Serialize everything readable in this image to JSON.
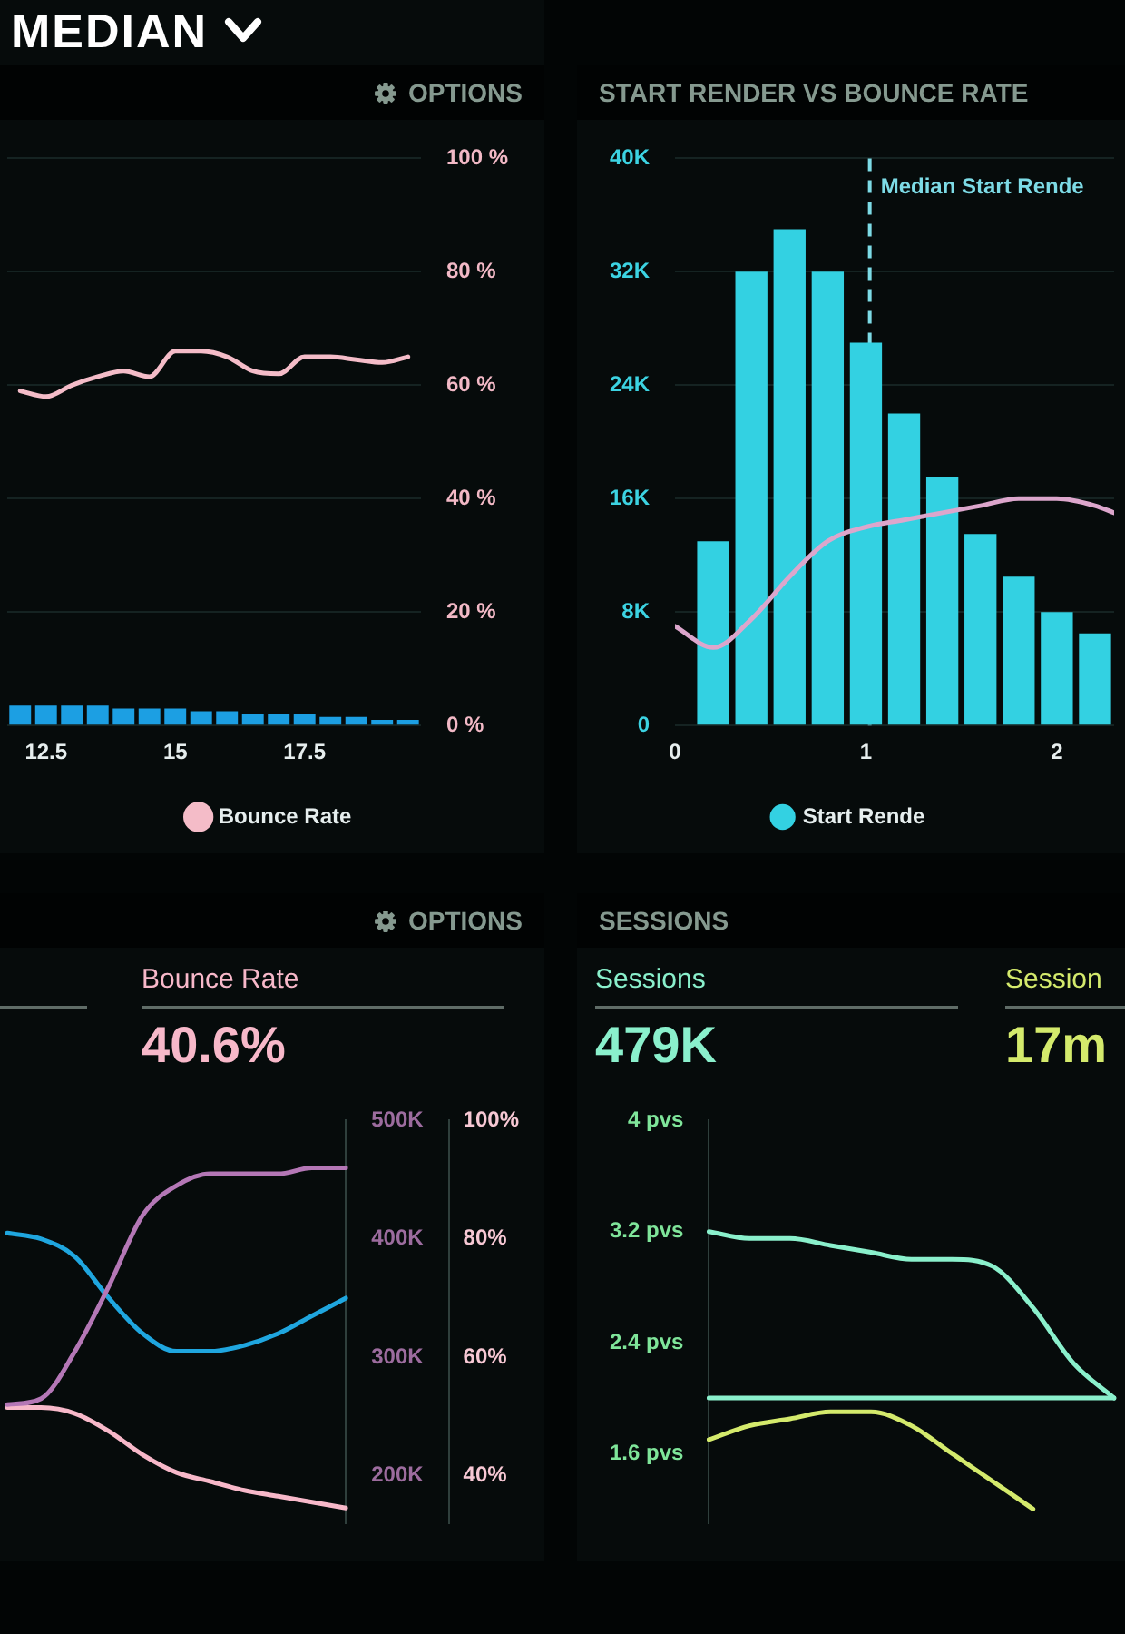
{
  "chart_data": [
    {
      "type": "bar",
      "x": [
        12,
        12.5,
        13,
        13.5,
        14,
        14.5,
        15,
        15.5,
        16,
        16.5,
        17,
        17.5,
        18,
        18.5,
        19,
        19.5
      ],
      "series": [
        {
          "color": "#1c9fe3",
          "values": [
            3.5,
            3.5,
            3.5,
            3.5,
            3,
            3,
            3,
            2.5,
            2.5,
            2,
            2,
            2,
            1.5,
            1.5,
            1,
            1
          ]
        },
        {
          "name": "Bounce Rate",
          "type": "line",
          "color": "#f4bcc8",
          "values": [
            59,
            58,
            60,
            61.5,
            62.5,
            61.5,
            66,
            66,
            65,
            62.5,
            62,
            65,
            65,
            64.5,
            64,
            65
          ]
        }
      ],
      "xlim": [
        11.75,
        19.75
      ],
      "xticks": [
        12.5,
        15,
        17.5
      ],
      "ylim": [
        0,
        100
      ],
      "yticks": [
        {
          "value": 0,
          "label": "0 %"
        },
        {
          "value": 20,
          "label": "20 %"
        },
        {
          "value": 40,
          "label": "40 %"
        },
        {
          "value": 60,
          "label": "60 %"
        },
        {
          "value": 80,
          "label": "80 %"
        },
        {
          "value": 100,
          "label": "100 %"
        }
      ],
      "grid": "y",
      "legend": "bottom",
      "marker": "none",
      "annotations": [
        "MEDIAN",
        "OPTIONS"
      ]
    },
    {
      "type": "bar",
      "title": "START RENDER VS BOUNCE RATE",
      "x": [
        0.2,
        0.4,
        0.6,
        0.8,
        1,
        1.2,
        1.4,
        1.6,
        1.8,
        2,
        2.2
      ],
      "series": [
        {
          "name": "Start Rende",
          "color": "#33d1e2",
          "values": [
            13000,
            32000,
            35000,
            32000,
            27000,
            22000,
            17500,
            13500,
            10500,
            8000,
            6500
          ]
        },
        {
          "type": "line",
          "color": "#dca6cc",
          "x": [
            0,
            0.2,
            0.4,
            0.6,
            0.8,
            1,
            1.2,
            1.4,
            1.6,
            1.8,
            2,
            2.2,
            2.3
          ],
          "values": [
            7000,
            5500,
            7500,
            10500,
            13000,
            14000,
            14500,
            15000,
            15500,
            16000,
            16000,
            15500,
            15000
          ]
        }
      ],
      "xlim": [
        0,
        2.3
      ],
      "xticks": [
        0,
        1,
        2
      ],
      "ylim": [
        0,
        40000
      ],
      "yticks": [
        0,
        {
          "value": 8000,
          "label": "8K"
        },
        {
          "value": 16000,
          "label": "16K"
        },
        {
          "value": 24000,
          "label": "24K"
        },
        {
          "value": 32000,
          "label": "32K"
        },
        {
          "value": 40000,
          "label": "40K"
        }
      ],
      "grid": "y",
      "legend": "bottom",
      "marker": "none",
      "ref_lines": [
        {
          "axis": "x",
          "value": 1.02,
          "label": "Median Start Rende",
          "color": "#7ddbe6",
          "line_style": "dashed"
        }
      ]
    },
    {
      "type": "line",
      "categories": [
        null,
        null,
        null,
        null,
        null,
        null,
        null,
        null,
        null,
        null,
        null
      ],
      "series": [
        {
          "color": "#b477b6",
          "values": [
            260000,
            265000,
            305000,
            360000,
            420000,
            445000,
            455000,
            455000,
            455000,
            460000,
            460000
          ]
        },
        {
          "color": "#1fa6df",
          "values": [
            405000,
            400000,
            385000,
            350000,
            320000,
            305000,
            305000,
            310000,
            320000,
            335000,
            350000
          ]
        },
        {
          "color": "#f7b8c9",
          "axis": "y2",
          "values": [
            51.5,
            51.5,
            50.5,
            47.5,
            43.5,
            40.5,
            39,
            37.5,
            36.5,
            35.5,
            34.5
          ]
        }
      ],
      "ylim": [
        160000,
        500000
      ],
      "yticks": [
        {
          "value": 200000,
          "label": "200K"
        },
        {
          "value": 300000,
          "label": "300K"
        },
        {
          "value": 400000,
          "label": "400K"
        },
        {
          "value": 500000,
          "label": "500K"
        }
      ],
      "y2lim": [
        32,
        100
      ],
      "y2ticks": [
        {
          "value": 40,
          "label": "40%"
        },
        {
          "value": 60,
          "label": "60%"
        },
        {
          "value": 80,
          "label": "80%"
        },
        {
          "value": 100,
          "label": "100%"
        }
      ],
      "marker": "none",
      "annotations": [
        "OPTIONS",
        "Bounce Rate",
        "40.6%"
      ]
    },
    {
      "type": "line",
      "title": "SESSIONS",
      "categories": [
        null,
        null,
        null,
        null,
        null,
        null,
        null,
        null,
        null,
        null,
        null
      ],
      "series": [
        {
          "color": "#8af0cc",
          "values": [
            3.2,
            3.15,
            3.15,
            3.1,
            3.05,
            3,
            3,
            2.95,
            2.65,
            2.25,
            2
          ]
        },
        {
          "color": "#8af0cc",
          "values": [
            2,
            2,
            2,
            2,
            2,
            2,
            2,
            2,
            2,
            2,
            2
          ]
        },
        {
          "color": "#d4ea6c",
          "values": [
            1.7,
            1.8,
            1.85,
            1.9,
            1.9,
            1.8,
            1.6,
            1.4,
            1.2,
            null,
            null
          ]
        }
      ],
      "ylim": [
        1.1,
        4
      ],
      "yticks": [
        {
          "value": 1.6,
          "label": "1.6 pvs"
        },
        {
          "value": 2.4,
          "label": "2.4 pvs"
        },
        {
          "value": 3.2,
          "label": "3.2 pvs"
        },
        {
          "value": 4,
          "label": "4 pvs"
        }
      ],
      "marker": "none",
      "annotations": [
        "Sessions",
        "479K",
        "Session",
        "17m"
      ]
    }
  ]
}
